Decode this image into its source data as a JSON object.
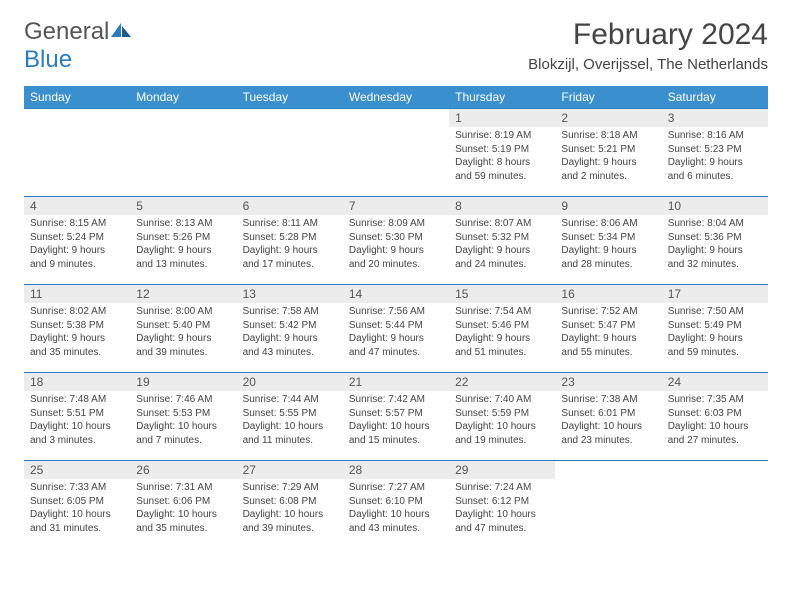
{
  "brand": {
    "name_part1": "General",
    "name_part2": "Blue"
  },
  "title": "February 2024",
  "location": "Blokzijl, Overijssel, The Netherlands",
  "colors": {
    "header_bg": "#3a8fcf",
    "border": "#2b7bbf",
    "daynum_bg": "#ececec"
  },
  "weekdays": [
    "Sunday",
    "Monday",
    "Tuesday",
    "Wednesday",
    "Thursday",
    "Friday",
    "Saturday"
  ],
  "weeks": [
    [
      null,
      null,
      null,
      null,
      {
        "n": "1",
        "sr": "Sunrise: 8:19 AM",
        "ss": "Sunset: 5:19 PM",
        "dl1": "Daylight: 8 hours",
        "dl2": "and 59 minutes."
      },
      {
        "n": "2",
        "sr": "Sunrise: 8:18 AM",
        "ss": "Sunset: 5:21 PM",
        "dl1": "Daylight: 9 hours",
        "dl2": "and 2 minutes."
      },
      {
        "n": "3",
        "sr": "Sunrise: 8:16 AM",
        "ss": "Sunset: 5:23 PM",
        "dl1": "Daylight: 9 hours",
        "dl2": "and 6 minutes."
      }
    ],
    [
      {
        "n": "4",
        "sr": "Sunrise: 8:15 AM",
        "ss": "Sunset: 5:24 PM",
        "dl1": "Daylight: 9 hours",
        "dl2": "and 9 minutes."
      },
      {
        "n": "5",
        "sr": "Sunrise: 8:13 AM",
        "ss": "Sunset: 5:26 PM",
        "dl1": "Daylight: 9 hours",
        "dl2": "and 13 minutes."
      },
      {
        "n": "6",
        "sr": "Sunrise: 8:11 AM",
        "ss": "Sunset: 5:28 PM",
        "dl1": "Daylight: 9 hours",
        "dl2": "and 17 minutes."
      },
      {
        "n": "7",
        "sr": "Sunrise: 8:09 AM",
        "ss": "Sunset: 5:30 PM",
        "dl1": "Daylight: 9 hours",
        "dl2": "and 20 minutes."
      },
      {
        "n": "8",
        "sr": "Sunrise: 8:07 AM",
        "ss": "Sunset: 5:32 PM",
        "dl1": "Daylight: 9 hours",
        "dl2": "and 24 minutes."
      },
      {
        "n": "9",
        "sr": "Sunrise: 8:06 AM",
        "ss": "Sunset: 5:34 PM",
        "dl1": "Daylight: 9 hours",
        "dl2": "and 28 minutes."
      },
      {
        "n": "10",
        "sr": "Sunrise: 8:04 AM",
        "ss": "Sunset: 5:36 PM",
        "dl1": "Daylight: 9 hours",
        "dl2": "and 32 minutes."
      }
    ],
    [
      {
        "n": "11",
        "sr": "Sunrise: 8:02 AM",
        "ss": "Sunset: 5:38 PM",
        "dl1": "Daylight: 9 hours",
        "dl2": "and 35 minutes."
      },
      {
        "n": "12",
        "sr": "Sunrise: 8:00 AM",
        "ss": "Sunset: 5:40 PM",
        "dl1": "Daylight: 9 hours",
        "dl2": "and 39 minutes."
      },
      {
        "n": "13",
        "sr": "Sunrise: 7:58 AM",
        "ss": "Sunset: 5:42 PM",
        "dl1": "Daylight: 9 hours",
        "dl2": "and 43 minutes."
      },
      {
        "n": "14",
        "sr": "Sunrise: 7:56 AM",
        "ss": "Sunset: 5:44 PM",
        "dl1": "Daylight: 9 hours",
        "dl2": "and 47 minutes."
      },
      {
        "n": "15",
        "sr": "Sunrise: 7:54 AM",
        "ss": "Sunset: 5:46 PM",
        "dl1": "Daylight: 9 hours",
        "dl2": "and 51 minutes."
      },
      {
        "n": "16",
        "sr": "Sunrise: 7:52 AM",
        "ss": "Sunset: 5:47 PM",
        "dl1": "Daylight: 9 hours",
        "dl2": "and 55 minutes."
      },
      {
        "n": "17",
        "sr": "Sunrise: 7:50 AM",
        "ss": "Sunset: 5:49 PM",
        "dl1": "Daylight: 9 hours",
        "dl2": "and 59 minutes."
      }
    ],
    [
      {
        "n": "18",
        "sr": "Sunrise: 7:48 AM",
        "ss": "Sunset: 5:51 PM",
        "dl1": "Daylight: 10 hours",
        "dl2": "and 3 minutes."
      },
      {
        "n": "19",
        "sr": "Sunrise: 7:46 AM",
        "ss": "Sunset: 5:53 PM",
        "dl1": "Daylight: 10 hours",
        "dl2": "and 7 minutes."
      },
      {
        "n": "20",
        "sr": "Sunrise: 7:44 AM",
        "ss": "Sunset: 5:55 PM",
        "dl1": "Daylight: 10 hours",
        "dl2": "and 11 minutes."
      },
      {
        "n": "21",
        "sr": "Sunrise: 7:42 AM",
        "ss": "Sunset: 5:57 PM",
        "dl1": "Daylight: 10 hours",
        "dl2": "and 15 minutes."
      },
      {
        "n": "22",
        "sr": "Sunrise: 7:40 AM",
        "ss": "Sunset: 5:59 PM",
        "dl1": "Daylight: 10 hours",
        "dl2": "and 19 minutes."
      },
      {
        "n": "23",
        "sr": "Sunrise: 7:38 AM",
        "ss": "Sunset: 6:01 PM",
        "dl1": "Daylight: 10 hours",
        "dl2": "and 23 minutes."
      },
      {
        "n": "24",
        "sr": "Sunrise: 7:35 AM",
        "ss": "Sunset: 6:03 PM",
        "dl1": "Daylight: 10 hours",
        "dl2": "and 27 minutes."
      }
    ],
    [
      {
        "n": "25",
        "sr": "Sunrise: 7:33 AM",
        "ss": "Sunset: 6:05 PM",
        "dl1": "Daylight: 10 hours",
        "dl2": "and 31 minutes."
      },
      {
        "n": "26",
        "sr": "Sunrise: 7:31 AM",
        "ss": "Sunset: 6:06 PM",
        "dl1": "Daylight: 10 hours",
        "dl2": "and 35 minutes."
      },
      {
        "n": "27",
        "sr": "Sunrise: 7:29 AM",
        "ss": "Sunset: 6:08 PM",
        "dl1": "Daylight: 10 hours",
        "dl2": "and 39 minutes."
      },
      {
        "n": "28",
        "sr": "Sunrise: 7:27 AM",
        "ss": "Sunset: 6:10 PM",
        "dl1": "Daylight: 10 hours",
        "dl2": "and 43 minutes."
      },
      {
        "n": "29",
        "sr": "Sunrise: 7:24 AM",
        "ss": "Sunset: 6:12 PM",
        "dl1": "Daylight: 10 hours",
        "dl2": "and 47 minutes."
      },
      null,
      null
    ]
  ]
}
